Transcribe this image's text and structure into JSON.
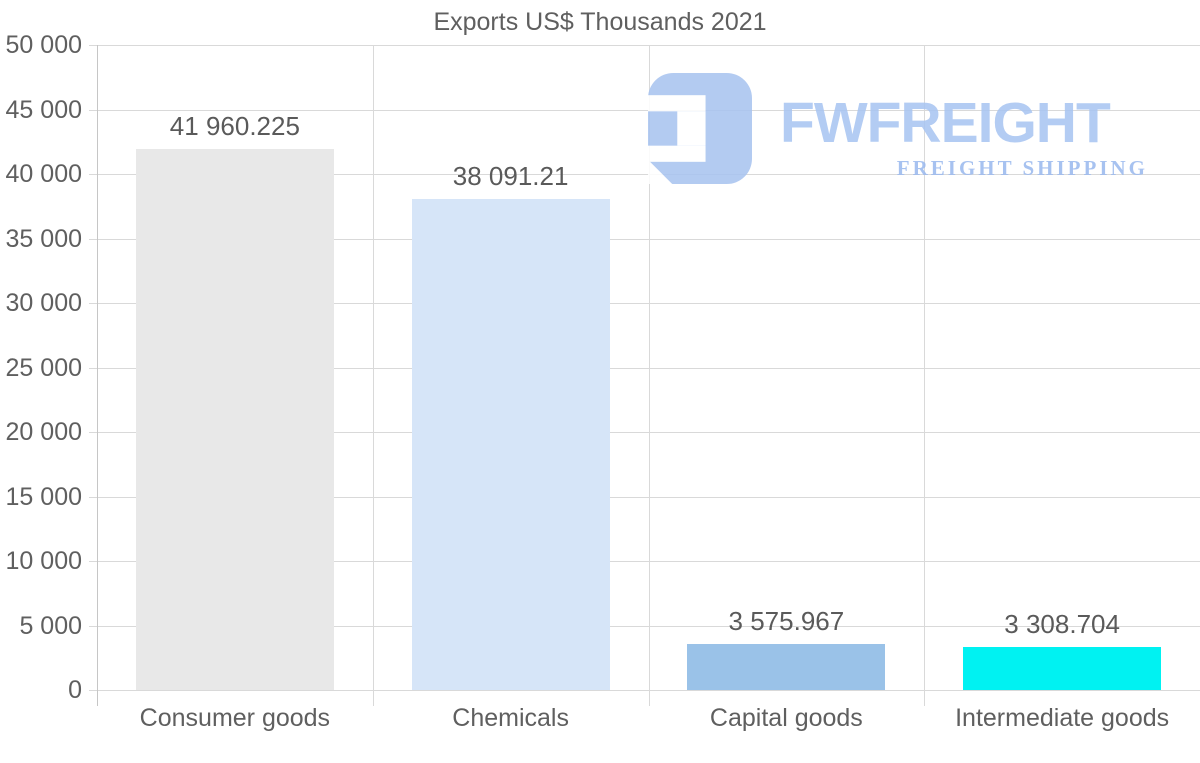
{
  "title": "Exports US$ Thousands 2021",
  "watermark": {
    "brand": "FWFREIGHT",
    "tagline": "FREIGHT SHIPPING",
    "icon": "fwfreight-logo-icon",
    "brand_color": "#a9c5f2",
    "tagline_color": "#9cbaee"
  },
  "chart_data": {
    "type": "bar",
    "title": "Exports US$ Thousands 2021",
    "categories": [
      "Consumer goods",
      "Chemicals",
      "Capital goods",
      "Intermediate goods"
    ],
    "values": [
      41960.225,
      38091.21,
      3575.967,
      3308.704
    ],
    "value_labels": [
      "41 960.225",
      "38 091.21",
      "3 575.967",
      "3 308.704"
    ],
    "bar_colors": [
      "#e8e8e8",
      "#d6e5f8",
      "#9ac2e8",
      "#00f2f2"
    ],
    "xlabel": "",
    "ylabel": "",
    "ylim": [
      0,
      50000
    ],
    "ytick_step": 5000,
    "ytick_labels": [
      "0",
      "5 000",
      "10 000",
      "15 000",
      "20 000",
      "25 000",
      "30 000",
      "35 000",
      "40 000",
      "45 000",
      "50 000"
    ],
    "grid": true,
    "legend": false
  },
  "colors": {
    "text": "#5f5f5f",
    "gridline": "#d9d9d9",
    "axis": "#c6c6c6",
    "background": "#ffffff"
  }
}
